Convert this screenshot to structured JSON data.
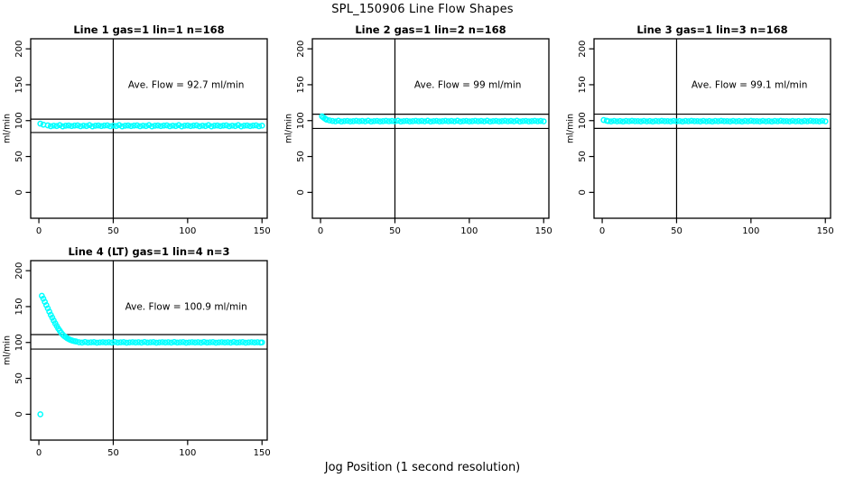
{
  "page": {
    "title": "SPL_150906  Line Flow Shapes",
    "xlabel": "Jog Position (1 second resolution)",
    "bg_color": "#ffffff",
    "axis_color": "#000000",
    "point_color": "#00ffff"
  },
  "chart_data": [
    {
      "type": "scatter",
      "title": "Line 1 gas=1 lin=1 n=168",
      "annotation": "Ave. Flow =  92.7  ml/min",
      "ylabel": "ml/min",
      "ave_flow": 92.7,
      "xlim": [
        -5.5,
        153.5
      ],
      "ylim": [
        -36,
        214
      ],
      "xticks": [
        0,
        50,
        100,
        150
      ],
      "yticks": [
        0,
        50,
        100,
        150,
        200
      ],
      "vline": 50,
      "hlines": [
        102.0,
        83.4
      ],
      "grid": false,
      "points": [
        [
          1,
          95.8
        ],
        [
          3,
          94.3
        ],
        [
          6,
          93.4
        ],
        [
          8,
          92.2
        ],
        [
          10,
          93.0
        ],
        [
          12,
          92.5
        ],
        [
          14,
          93.7
        ],
        [
          16,
          92.0
        ],
        [
          18,
          92.9
        ],
        [
          20,
          93.2
        ],
        [
          22,
          92.4
        ],
        [
          24,
          93.1
        ],
        [
          26,
          93.4
        ],
        [
          28,
          92.2
        ],
        [
          30,
          93.0
        ],
        [
          32,
          92.5
        ],
        [
          34,
          93.7
        ],
        [
          36,
          92.0
        ],
        [
          38,
          92.9
        ],
        [
          40,
          93.2
        ],
        [
          42,
          92.4
        ],
        [
          44,
          93.1
        ],
        [
          46,
          93.4
        ],
        [
          48,
          92.2
        ],
        [
          50,
          93.0
        ],
        [
          52,
          92.5
        ],
        [
          54,
          93.7
        ],
        [
          56,
          92.0
        ],
        [
          58,
          92.9
        ],
        [
          60,
          93.2
        ],
        [
          62,
          92.4
        ],
        [
          64,
          93.1
        ],
        [
          66,
          93.4
        ],
        [
          68,
          92.2
        ],
        [
          70,
          93.0
        ],
        [
          72,
          92.5
        ],
        [
          74,
          93.7
        ],
        [
          76,
          92.0
        ],
        [
          78,
          92.9
        ],
        [
          80,
          93.2
        ],
        [
          82,
          92.4
        ],
        [
          84,
          93.1
        ],
        [
          86,
          93.4
        ],
        [
          88,
          92.2
        ],
        [
          90,
          93.0
        ],
        [
          92,
          92.5
        ],
        [
          94,
          93.7
        ],
        [
          96,
          92.0
        ],
        [
          98,
          92.9
        ],
        [
          100,
          93.2
        ],
        [
          102,
          92.4
        ],
        [
          104,
          93.1
        ],
        [
          106,
          93.4
        ],
        [
          108,
          92.2
        ],
        [
          110,
          93.0
        ],
        [
          112,
          92.5
        ],
        [
          114,
          93.7
        ],
        [
          116,
          92.0
        ],
        [
          118,
          92.9
        ],
        [
          120,
          93.2
        ],
        [
          122,
          92.4
        ],
        [
          124,
          93.1
        ],
        [
          126,
          93.4
        ],
        [
          128,
          92.2
        ],
        [
          130,
          93.0
        ],
        [
          132,
          92.5
        ],
        [
          134,
          93.7
        ],
        [
          136,
          92.0
        ],
        [
          138,
          92.9
        ],
        [
          140,
          93.2
        ],
        [
          142,
          92.4
        ],
        [
          144,
          93.1
        ],
        [
          146,
          93.4
        ],
        [
          148,
          92.2
        ],
        [
          150,
          93.0
        ]
      ]
    },
    {
      "type": "scatter",
      "title": "Line 2 gas=1 lin=2 n=168",
      "annotation": "Ave. Flow =  99  ml/min",
      "ylabel": "ml/min",
      "ave_flow": 99,
      "xlim": [
        -5.5,
        153.5
      ],
      "ylim": [
        -36,
        214
      ],
      "xticks": [
        0,
        50,
        100,
        150
      ],
      "yticks": [
        0,
        50,
        100,
        150,
        200
      ],
      "vline": 50,
      "hlines": [
        108.9,
        89.1
      ],
      "grid": false,
      "points": [
        [
          1,
          106.0
        ],
        [
          2,
          104.3
        ],
        [
          3,
          102.8
        ],
        [
          4,
          101.4
        ],
        [
          6,
          100.3
        ],
        [
          8,
          99.5
        ],
        [
          10,
          99.0
        ],
        [
          12,
          99.8
        ],
        [
          14,
          98.8
        ],
        [
          16,
          99.3
        ],
        [
          18,
          99.6
        ],
        [
          20,
          98.9
        ],
        [
          22,
          99.2
        ],
        [
          24,
          99.7
        ],
        [
          26,
          99.1
        ],
        [
          28,
          99.5
        ],
        [
          30,
          99.0
        ],
        [
          32,
          99.8
        ],
        [
          34,
          98.8
        ],
        [
          36,
          99.3
        ],
        [
          38,
          99.6
        ],
        [
          40,
          98.9
        ],
        [
          42,
          99.2
        ],
        [
          44,
          99.7
        ],
        [
          46,
          99.1
        ],
        [
          48,
          99.5
        ],
        [
          50,
          99.0
        ],
        [
          52,
          99.8
        ],
        [
          54,
          98.8
        ],
        [
          56,
          99.3
        ],
        [
          58,
          99.6
        ],
        [
          60,
          98.9
        ],
        [
          62,
          99.2
        ],
        [
          64,
          99.7
        ],
        [
          66,
          99.1
        ],
        [
          68,
          99.5
        ],
        [
          70,
          99.0
        ],
        [
          72,
          99.8
        ],
        [
          74,
          98.8
        ],
        [
          76,
          99.3
        ],
        [
          78,
          99.6
        ],
        [
          80,
          98.9
        ],
        [
          82,
          99.2
        ],
        [
          84,
          99.7
        ],
        [
          86,
          99.1
        ],
        [
          88,
          99.5
        ],
        [
          90,
          99.0
        ],
        [
          92,
          99.8
        ],
        [
          94,
          98.8
        ],
        [
          96,
          99.3
        ],
        [
          98,
          99.6
        ],
        [
          100,
          98.9
        ],
        [
          102,
          99.2
        ],
        [
          104,
          99.7
        ],
        [
          106,
          99.1
        ],
        [
          108,
          99.5
        ],
        [
          110,
          99.0
        ],
        [
          112,
          99.8
        ],
        [
          114,
          98.8
        ],
        [
          116,
          99.3
        ],
        [
          118,
          99.6
        ],
        [
          120,
          98.9
        ],
        [
          122,
          99.2
        ],
        [
          124,
          99.7
        ],
        [
          126,
          99.1
        ],
        [
          128,
          99.5
        ],
        [
          130,
          99.0
        ],
        [
          132,
          99.8
        ],
        [
          134,
          98.8
        ],
        [
          136,
          99.3
        ],
        [
          138,
          99.6
        ],
        [
          140,
          98.9
        ],
        [
          142,
          99.2
        ],
        [
          144,
          99.7
        ],
        [
          146,
          99.1
        ],
        [
          148,
          99.5
        ],
        [
          150,
          99.0
        ]
      ]
    },
    {
      "type": "scatter",
      "title": "Line 3 gas=1 lin=3 n=168",
      "annotation": "Ave. Flow =  99.1  ml/min",
      "ylabel": "ml/min",
      "ave_flow": 99.1,
      "xlim": [
        -5.5,
        153.5
      ],
      "ylim": [
        -36,
        214
      ],
      "xticks": [
        0,
        50,
        100,
        150
      ],
      "yticks": [
        0,
        50,
        100,
        150,
        200
      ],
      "vline": 50,
      "hlines": [
        109.0,
        89.2
      ],
      "grid": false,
      "points": [
        [
          1,
          100.8
        ],
        [
          3,
          99.8
        ],
        [
          4,
          99.3
        ],
        [
          6,
          98.9
        ],
        [
          8,
          99.6
        ],
        [
          10,
          99.0
        ],
        [
          12,
          99.4
        ],
        [
          14,
          98.8
        ],
        [
          16,
          99.5
        ],
        [
          18,
          99.1
        ],
        [
          20,
          99.7
        ],
        [
          22,
          99.2
        ],
        [
          24,
          99.3
        ],
        [
          26,
          98.9
        ],
        [
          28,
          99.6
        ],
        [
          30,
          99.0
        ],
        [
          32,
          99.4
        ],
        [
          34,
          98.8
        ],
        [
          36,
          99.5
        ],
        [
          38,
          99.1
        ],
        [
          40,
          99.7
        ],
        [
          42,
          99.2
        ],
        [
          44,
          99.3
        ],
        [
          46,
          98.9
        ],
        [
          48,
          99.6
        ],
        [
          50,
          99.0
        ],
        [
          52,
          99.4
        ],
        [
          54,
          98.8
        ],
        [
          56,
          99.5
        ],
        [
          58,
          99.1
        ],
        [
          60,
          99.7
        ],
        [
          62,
          99.2
        ],
        [
          64,
          99.3
        ],
        [
          66,
          98.9
        ],
        [
          68,
          99.6
        ],
        [
          70,
          99.0
        ],
        [
          72,
          99.4
        ],
        [
          74,
          98.8
        ],
        [
          76,
          99.5
        ],
        [
          78,
          99.1
        ],
        [
          80,
          99.7
        ],
        [
          82,
          99.2
        ],
        [
          84,
          99.3
        ],
        [
          86,
          98.9
        ],
        [
          88,
          99.6
        ],
        [
          90,
          99.0
        ],
        [
          92,
          99.4
        ],
        [
          94,
          98.8
        ],
        [
          96,
          99.5
        ],
        [
          98,
          99.1
        ],
        [
          100,
          99.7
        ],
        [
          102,
          99.2
        ],
        [
          104,
          99.3
        ],
        [
          106,
          98.9
        ],
        [
          108,
          99.6
        ],
        [
          110,
          99.0
        ],
        [
          112,
          99.4
        ],
        [
          114,
          98.8
        ],
        [
          116,
          99.5
        ],
        [
          118,
          99.1
        ],
        [
          120,
          99.7
        ],
        [
          122,
          99.2
        ],
        [
          124,
          99.3
        ],
        [
          126,
          98.9
        ],
        [
          128,
          99.6
        ],
        [
          130,
          99.0
        ],
        [
          132,
          99.4
        ],
        [
          134,
          98.8
        ],
        [
          136,
          99.5
        ],
        [
          138,
          99.1
        ],
        [
          140,
          99.7
        ],
        [
          142,
          99.2
        ],
        [
          144,
          99.3
        ],
        [
          146,
          98.9
        ],
        [
          148,
          99.6
        ],
        [
          150,
          99.0
        ]
      ]
    },
    {
      "type": "scatter",
      "title": "Line 4 (LT) gas=1 lin=4 n=3",
      "annotation": "Ave. Flow =  100.9  ml/min",
      "ylabel": "ml/min",
      "ave_flow": 100.9,
      "xlim": [
        -5.5,
        153.5
      ],
      "ylim": [
        -36,
        214
      ],
      "xticks": [
        0,
        50,
        100,
        150
      ],
      "yticks": [
        0,
        50,
        100,
        150,
        200
      ],
      "vline": 50,
      "hlines": [
        111.0,
        90.8
      ],
      "grid": false,
      "points": [
        [
          1,
          0
        ],
        [
          2,
          165
        ],
        [
          3,
          161
        ],
        [
          4,
          156.5
        ],
        [
          5,
          152
        ],
        [
          6,
          147.5
        ],
        [
          7,
          143
        ],
        [
          8,
          138.5
        ],
        [
          9,
          134.5
        ],
        [
          10,
          130.5
        ],
        [
          11,
          126.5
        ],
        [
          12,
          123
        ],
        [
          13,
          119.5
        ],
        [
          14,
          116.5
        ],
        [
          15,
          113.5
        ],
        [
          16,
          111
        ],
        [
          17,
          109
        ],
        [
          18,
          107.5
        ],
        [
          19,
          106
        ],
        [
          20,
          104.8
        ],
        [
          21,
          103.8
        ],
        [
          22,
          103
        ],
        [
          23,
          102.3
        ],
        [
          24,
          101.8
        ],
        [
          25,
          101.4
        ],
        [
          27,
          100.3
        ],
        [
          29,
          99.8
        ],
        [
          31,
          100.6
        ],
        [
          33,
          99.9
        ],
        [
          35,
          100.2
        ],
        [
          37,
          100.5
        ],
        [
          39,
          99.7
        ],
        [
          41,
          100.1
        ],
        [
          43,
          100.4
        ],
        [
          45,
          100.0
        ],
        [
          47,
          100.3
        ],
        [
          49,
          99.8
        ],
        [
          51,
          100.6
        ],
        [
          53,
          99.9
        ],
        [
          55,
          100.2
        ],
        [
          57,
          100.5
        ],
        [
          59,
          99.7
        ],
        [
          61,
          100.1
        ],
        [
          63,
          100.4
        ],
        [
          65,
          100.0
        ],
        [
          67,
          100.3
        ],
        [
          69,
          99.8
        ],
        [
          71,
          100.6
        ],
        [
          73,
          99.9
        ],
        [
          75,
          100.2
        ],
        [
          77,
          100.5
        ],
        [
          79,
          99.7
        ],
        [
          81,
          100.1
        ],
        [
          83,
          100.4
        ],
        [
          85,
          100.0
        ],
        [
          87,
          100.3
        ],
        [
          89,
          99.8
        ],
        [
          91,
          100.6
        ],
        [
          93,
          99.9
        ],
        [
          95,
          100.2
        ],
        [
          97,
          100.5
        ],
        [
          99,
          99.7
        ],
        [
          101,
          100.1
        ],
        [
          103,
          100.4
        ],
        [
          105,
          100.0
        ],
        [
          107,
          100.3
        ],
        [
          109,
          99.8
        ],
        [
          111,
          100.6
        ],
        [
          113,
          99.9
        ],
        [
          115,
          100.2
        ],
        [
          117,
          100.5
        ],
        [
          119,
          99.7
        ],
        [
          121,
          100.1
        ],
        [
          123,
          100.4
        ],
        [
          125,
          100.0
        ],
        [
          127,
          100.3
        ],
        [
          129,
          99.8
        ],
        [
          131,
          100.6
        ],
        [
          133,
          99.9
        ],
        [
          135,
          100.2
        ],
        [
          137,
          100.5
        ],
        [
          139,
          99.7
        ],
        [
          141,
          100.1
        ],
        [
          143,
          100.4
        ],
        [
          145,
          100.0
        ],
        [
          147,
          100.3
        ],
        [
          149,
          99.8
        ],
        [
          150,
          100.1
        ]
      ]
    }
  ]
}
